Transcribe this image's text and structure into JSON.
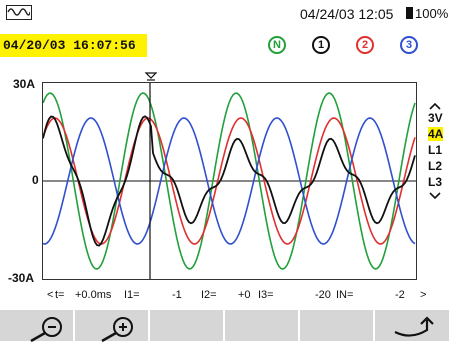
{
  "header": {
    "icon": "waveform-icon",
    "datetime": "04/24/03 12:05",
    "battery": "100%"
  },
  "snapshot": {
    "timestamp": "04/20/03 16:07:56"
  },
  "channels": [
    {
      "label": "N",
      "color": "#22a03c"
    },
    {
      "label": "1",
      "color": "#111111"
    },
    {
      "label": "2",
      "color": "#e03030"
    },
    {
      "label": "3",
      "color": "#3050d0"
    }
  ],
  "plot": {
    "y_top_label": "30A",
    "y_zero_label": "0",
    "y_bottom_label": "-30A",
    "cursor_icon": "cursor-marker-icon"
  },
  "side_menu": [
    {
      "label": "3V",
      "active": false
    },
    {
      "label": "4A",
      "active": true
    },
    {
      "label": "L1",
      "active": false
    },
    {
      "label": "L2",
      "active": false
    },
    {
      "label": "L3",
      "active": false
    }
  ],
  "readout": {
    "prev_arrow": "<",
    "t_label": "t=",
    "t_value": "+0.0ms",
    "i1_label": "I1=",
    "i1_value": "-1",
    "i2_label": "I2=",
    "i2_value": "+0",
    "i3_label": "I3=",
    "i3_value": "-20",
    "in_label": "IN=",
    "in_value": "-2",
    "next_arrow": ">"
  },
  "softkeys": [
    {
      "icon": "zoom-out-icon"
    },
    {
      "icon": "zoom-in-icon"
    },
    {
      "icon": ""
    },
    {
      "icon": ""
    },
    {
      "icon": ""
    },
    {
      "icon": "return-icon"
    }
  ],
  "colors": {
    "highlight": "#fff200",
    "softkey_bg": "#d6d6d6"
  }
}
